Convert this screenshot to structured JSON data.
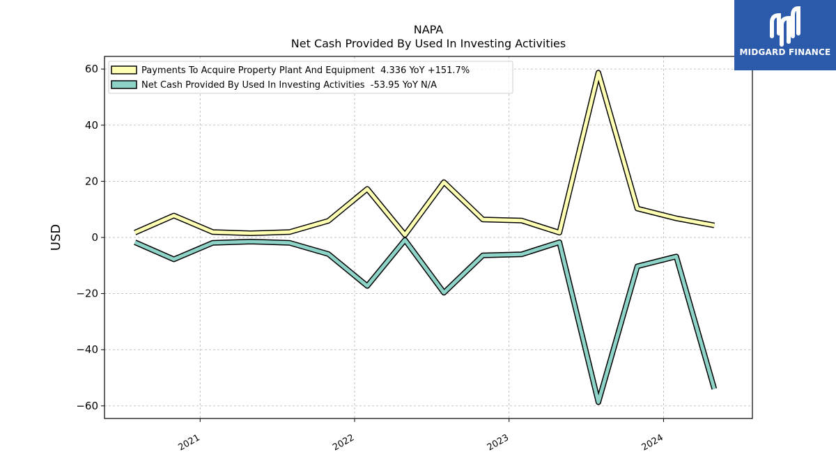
{
  "brand": {
    "name": "MIDGARD FINANCE",
    "color": "#2b5aab"
  },
  "chart_data": {
    "type": "line",
    "title": "NAPA",
    "subtitle": "Net Cash Provided By Used In Investing Activities",
    "xlabel": "",
    "ylabel": "USD",
    "ylim": [
      -64.5,
      64.5
    ],
    "xlim": [
      "2020-05-20",
      "2024-07-29"
    ],
    "yticks": [
      60,
      40,
      20,
      0,
      -20,
      -40,
      -60
    ],
    "ytick_labels": [
      "60",
      "40",
      "20",
      "0",
      "−20",
      "−40",
      "−60"
    ],
    "xticks": [
      "2021-01-01",
      "2022-01-01",
      "2023-01-01",
      "2024-01-01"
    ],
    "xtick_labels": [
      "2021",
      "2022",
      "2023",
      "2024"
    ],
    "grid": true,
    "legend_position": "top-left",
    "x": [
      "2020-07-31",
      "2020-10-31",
      "2021-01-31",
      "2021-04-30",
      "2021-07-31",
      "2021-10-31",
      "2022-01-31",
      "2022-04-30",
      "2022-07-31",
      "2022-10-31",
      "2023-01-31",
      "2023-04-30",
      "2023-07-31",
      "2023-10-31",
      "2024-01-31",
      "2024-04-30"
    ],
    "series": [
      {
        "name": "Payments To Acquire Property Plant And Equipment  4.336 YoY +151.7%",
        "color": "#ffffb3",
        "values": [
          1.7,
          7.8,
          1.9,
          1.5,
          1.9,
          5.9,
          17.3,
          0.9,
          19.7,
          6.4,
          6.0,
          1.7,
          58.7,
          10.3,
          6.8,
          4.3
        ]
      },
      {
        "name": "Net Cash Provided By Used In Investing Activities  -53.95 YoY N/A",
        "color": "#8dd3c7",
        "values": [
          -1.7,
          -7.8,
          -1.9,
          -1.5,
          -1.9,
          -5.9,
          -17.3,
          -0.9,
          -19.7,
          -6.4,
          -6.0,
          -1.7,
          -58.7,
          -10.3,
          -6.8,
          -53.95
        ]
      }
    ]
  }
}
